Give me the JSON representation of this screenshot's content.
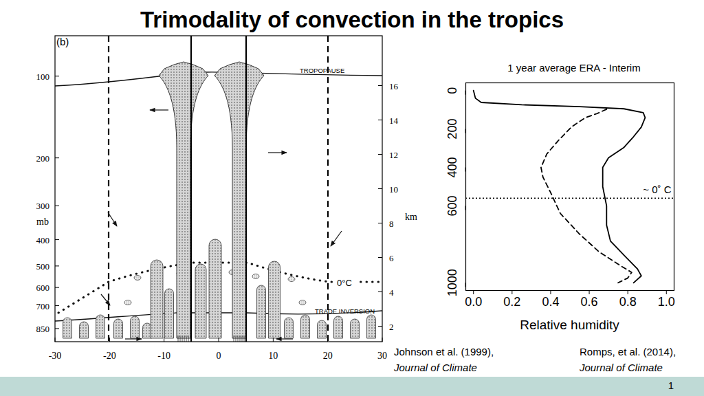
{
  "slide": {
    "title": "Trimodality of convection in the tropics",
    "page_number": 1
  },
  "diagram": {
    "panel_label": "(b)",
    "xlim": [
      -30,
      30
    ],
    "xticks": [
      -30,
      -20,
      -10,
      0,
      10,
      20,
      30
    ],
    "pressure_axis": {
      "label": "mb",
      "log": true,
      "ylim": [
        950,
        71
      ],
      "yticks": [
        100,
        200,
        300,
        400,
        500,
        600,
        700,
        850
      ]
    },
    "height_axis": {
      "label": "km",
      "ylim": [
        1.1,
        18.9
      ],
      "yticks": [
        2,
        4,
        6,
        8,
        10,
        12,
        14,
        16
      ]
    },
    "labels": {
      "tropopause": "TROPOPAUSE",
      "trade_inversion": "TRADE INVERSION",
      "freezing_level": "0°C"
    },
    "citation": [
      "Johnson et al. (1999),",
      "Journal of Climate"
    ]
  },
  "chart_data": {
    "type": "line",
    "title": "1 year average ERA - Interim",
    "x_label": "Relative humidity",
    "xlim": [
      -0.04,
      1.04
    ],
    "xticks": [
      {
        "value": 0,
        "label": "0.0"
      },
      {
        "value": 0.2,
        "label": "0.2"
      },
      {
        "value": 0.4,
        "label": "0.4"
      },
      {
        "value": 0.6,
        "label": "0.6"
      },
      {
        "value": 0.8,
        "label": "0.8"
      },
      {
        "value": 1,
        "label": "1.0"
      }
    ],
    "ylim": [
      1040,
      -40
    ],
    "yticks": [
      0,
      200,
      400,
      600,
      1000
    ],
    "series": [
      {
        "color": "#000000",
        "line_style": "solid",
        "x": [
          0.0,
          0.01,
          0.04,
          0.25,
          0.55,
          0.78,
          0.88,
          0.89,
          0.87,
          0.83,
          0.78,
          0.7,
          0.67,
          0.67,
          0.69,
          0.69,
          0.71,
          0.78,
          0.85,
          0.87,
          0.83
        ],
        "y": [
          0,
          40,
          62,
          74,
          84,
          95,
          115,
          141,
          190,
          240,
          296,
          350,
          400,
          500,
          600,
          700,
          783,
          856,
          928,
          964,
          1000
        ]
      },
      {
        "color": "#000000",
        "line_style": "dashed",
        "x": [
          0.69,
          0.64,
          0.58,
          0.51,
          0.44,
          0.38,
          0.35,
          0.36,
          0.4,
          0.45,
          0.55,
          0.65,
          0.76,
          0.82,
          0.8,
          0.75
        ],
        "y": [
          97,
          120,
          141,
          188,
          260,
          330,
          400,
          450,
          531,
          639,
          747,
          838,
          910,
          946,
          975,
          1000
        ]
      }
    ],
    "annotations": [
      {
        "text": "~ 0˚ C",
        "y": 560,
        "line_style": "dotted",
        "color": "#000000"
      }
    ],
    "citation": [
      "Romps, et al. (2014),",
      "Journal of Climate"
    ]
  }
}
